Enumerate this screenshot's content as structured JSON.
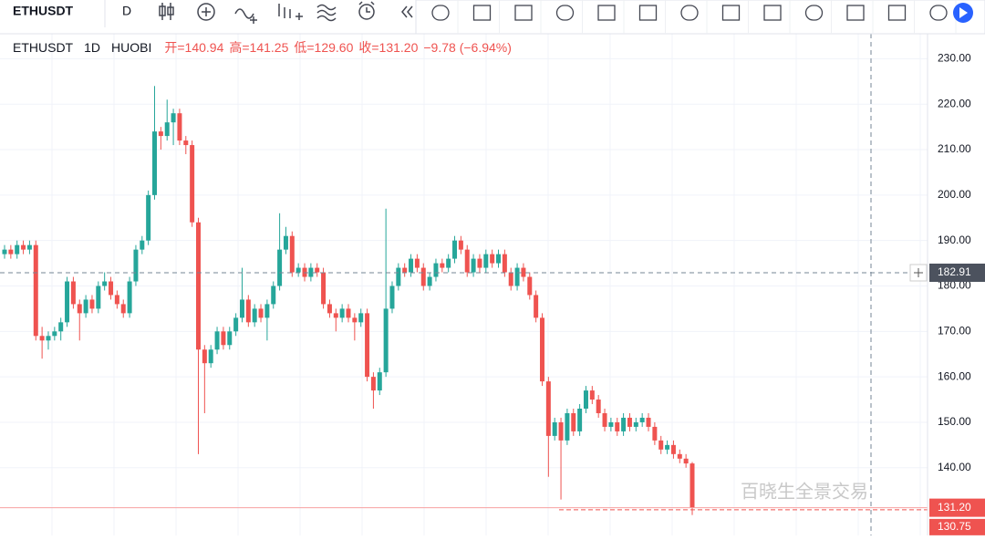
{
  "toolbar": {
    "symbol": "ETHUSDT",
    "interval": "D"
  },
  "legend": {
    "symbol": "ETHUSDT",
    "interval": "1D",
    "exchange": "HUOBI",
    "items": [
      "开=140.94",
      "高=141.25",
      "低=129.60",
      "收=131.20",
      "−9.78 (−6.94%)"
    ]
  },
  "watermark": "百晓生全景交易",
  "chart_data": {
    "type": "candlestick",
    "up_color": "#26a69a",
    "down_color": "#ef5350",
    "ylim": [
      125.1,
      235.5
    ],
    "yticks": [
      {
        "value": 230,
        "label": "230.00"
      },
      {
        "value": 220,
        "label": "220.00"
      },
      {
        "value": 210,
        "label": "210.00"
      },
      {
        "value": 200,
        "label": "200.00"
      },
      {
        "value": 190,
        "label": "190.00"
      },
      {
        "value": 180,
        "label": "180.00"
      },
      {
        "value": 170,
        "label": "170.00"
      },
      {
        "value": 160,
        "label": "160.00"
      },
      {
        "value": 150,
        "label": "150.00"
      },
      {
        "value": 140,
        "label": "140.00"
      }
    ],
    "grid": true,
    "crosshair_price": 182.91,
    "last_price": {
      "value": 131.2,
      "label": "131.20"
    },
    "second_price": 130.75,
    "candles": [
      [
        187,
        189,
        186,
        188
      ],
      [
        188,
        189,
        186,
        187
      ],
      [
        187,
        190,
        186,
        189
      ],
      [
        189,
        190,
        187,
        188
      ],
      [
        188,
        190,
        187,
        189
      ],
      [
        189,
        190,
        168,
        169
      ],
      [
        169,
        171,
        164,
        168
      ],
      [
        168,
        170,
        166,
        169
      ],
      [
        169,
        171,
        168,
        170
      ],
      [
        170,
        173,
        168,
        172
      ],
      [
        172,
        182,
        171,
        181
      ],
      [
        181,
        182,
        175,
        176
      ],
      [
        176,
        177,
        168,
        174
      ],
      [
        174,
        178,
        173,
        177
      ],
      [
        177,
        178,
        174,
        175
      ],
      [
        175,
        181,
        174,
        180
      ],
      [
        180,
        183,
        179,
        181
      ],
      [
        181,
        182,
        177,
        178
      ],
      [
        178,
        179,
        175,
        176
      ],
      [
        176,
        177,
        173,
        174
      ],
      [
        174,
        182,
        173,
        181
      ],
      [
        181,
        189,
        180,
        188
      ],
      [
        188,
        191,
        187,
        190
      ],
      [
        190,
        201,
        189,
        200
      ],
      [
        200,
        224,
        199,
        214
      ],
      [
        214,
        215,
        210,
        213
      ],
      [
        213,
        221,
        212,
        216
      ],
      [
        216,
        219,
        211,
        218
      ],
      [
        218,
        219,
        211,
        212
      ],
      [
        212,
        213,
        209,
        211
      ],
      [
        211,
        212,
        193,
        194
      ],
      [
        194,
        195,
        143,
        166
      ],
      [
        166,
        167,
        152,
        163
      ],
      [
        163,
        167,
        162,
        166
      ],
      [
        166,
        171,
        165,
        170
      ],
      [
        170,
        171,
        166,
        167
      ],
      [
        167,
        171,
        166,
        170
      ],
      [
        170,
        174,
        169,
        173
      ],
      [
        173,
        184,
        172,
        177
      ],
      [
        177,
        178,
        171,
        172
      ],
      [
        172,
        176,
        171,
        175
      ],
      [
        175,
        176,
        172,
        173
      ],
      [
        173,
        177,
        168,
        176
      ],
      [
        176,
        181,
        175,
        180
      ],
      [
        180,
        196,
        179,
        188
      ],
      [
        188,
        193,
        187,
        191
      ],
      [
        191,
        192,
        182,
        183
      ],
      [
        183,
        185,
        182,
        184
      ],
      [
        184,
        185,
        181,
        182
      ],
      [
        182,
        185,
        181,
        184
      ],
      [
        184,
        185,
        182,
        183
      ],
      [
        183,
        184,
        175,
        176
      ],
      [
        176,
        177,
        173,
        174
      ],
      [
        174,
        175,
        170,
        173
      ],
      [
        173,
        176,
        172,
        175
      ],
      [
        175,
        176,
        172,
        173
      ],
      [
        173,
        174,
        168,
        172
      ],
      [
        172,
        175,
        171,
        174
      ],
      [
        174,
        175,
        159,
        160
      ],
      [
        160,
        161,
        153,
        157
      ],
      [
        157,
        162,
        156,
        161
      ],
      [
        161,
        197,
        160,
        175
      ],
      [
        175,
        181,
        174,
        180
      ],
      [
        180,
        185,
        179,
        184
      ],
      [
        184,
        185,
        182,
        183
      ],
      [
        183,
        187,
        182,
        186
      ],
      [
        186,
        187,
        183,
        184
      ],
      [
        184,
        185,
        179,
        180
      ],
      [
        180,
        183,
        179,
        182
      ],
      [
        182,
        186,
        181,
        185
      ],
      [
        185,
        186,
        183,
        184
      ],
      [
        184,
        187,
        183,
        186
      ],
      [
        186,
        191,
        185,
        190
      ],
      [
        190,
        191,
        187,
        188
      ],
      [
        188,
        189,
        182,
        183
      ],
      [
        183,
        187,
        182,
        186
      ],
      [
        186,
        187,
        183,
        184
      ],
      [
        184,
        188,
        183,
        187
      ],
      [
        187,
        188,
        184,
        185
      ],
      [
        185,
        188,
        184,
        187
      ],
      [
        187,
        188,
        182,
        183
      ],
      [
        183,
        184,
        179,
        180
      ],
      [
        180,
        185,
        179,
        184
      ],
      [
        184,
        185,
        181,
        182
      ],
      [
        182,
        183,
        177,
        178
      ],
      [
        178,
        179,
        172,
        173
      ],
      [
        173,
        174,
        158,
        159
      ],
      [
        159,
        160,
        138,
        147
      ],
      [
        147,
        151,
        146,
        150
      ],
      [
        150,
        151,
        133,
        146
      ],
      [
        146,
        153,
        145,
        152
      ],
      [
        152,
        153,
        147,
        148
      ],
      [
        148,
        154,
        147,
        153
      ],
      [
        153,
        158,
        152,
        157
      ],
      [
        157,
        158,
        154,
        155
      ],
      [
        155,
        156,
        151,
        152
      ],
      [
        152,
        153,
        148,
        149
      ],
      [
        149,
        151,
        148,
        150
      ],
      [
        150,
        151,
        147,
        148
      ],
      [
        148,
        152,
        147,
        151
      ],
      [
        151,
        152,
        148,
        149
      ],
      [
        149,
        151,
        148,
        150
      ],
      [
        150,
        152,
        149,
        151
      ],
      [
        151,
        152,
        148,
        149
      ],
      [
        149,
        150,
        145,
        146
      ],
      [
        146,
        147,
        143,
        144
      ],
      [
        144,
        146,
        143,
        145
      ],
      [
        145,
        146,
        142,
        143
      ],
      [
        143,
        144,
        141,
        142
      ],
      [
        142,
        143,
        140,
        140.94
      ],
      [
        140.94,
        141.25,
        129.6,
        131.2
      ]
    ]
  }
}
